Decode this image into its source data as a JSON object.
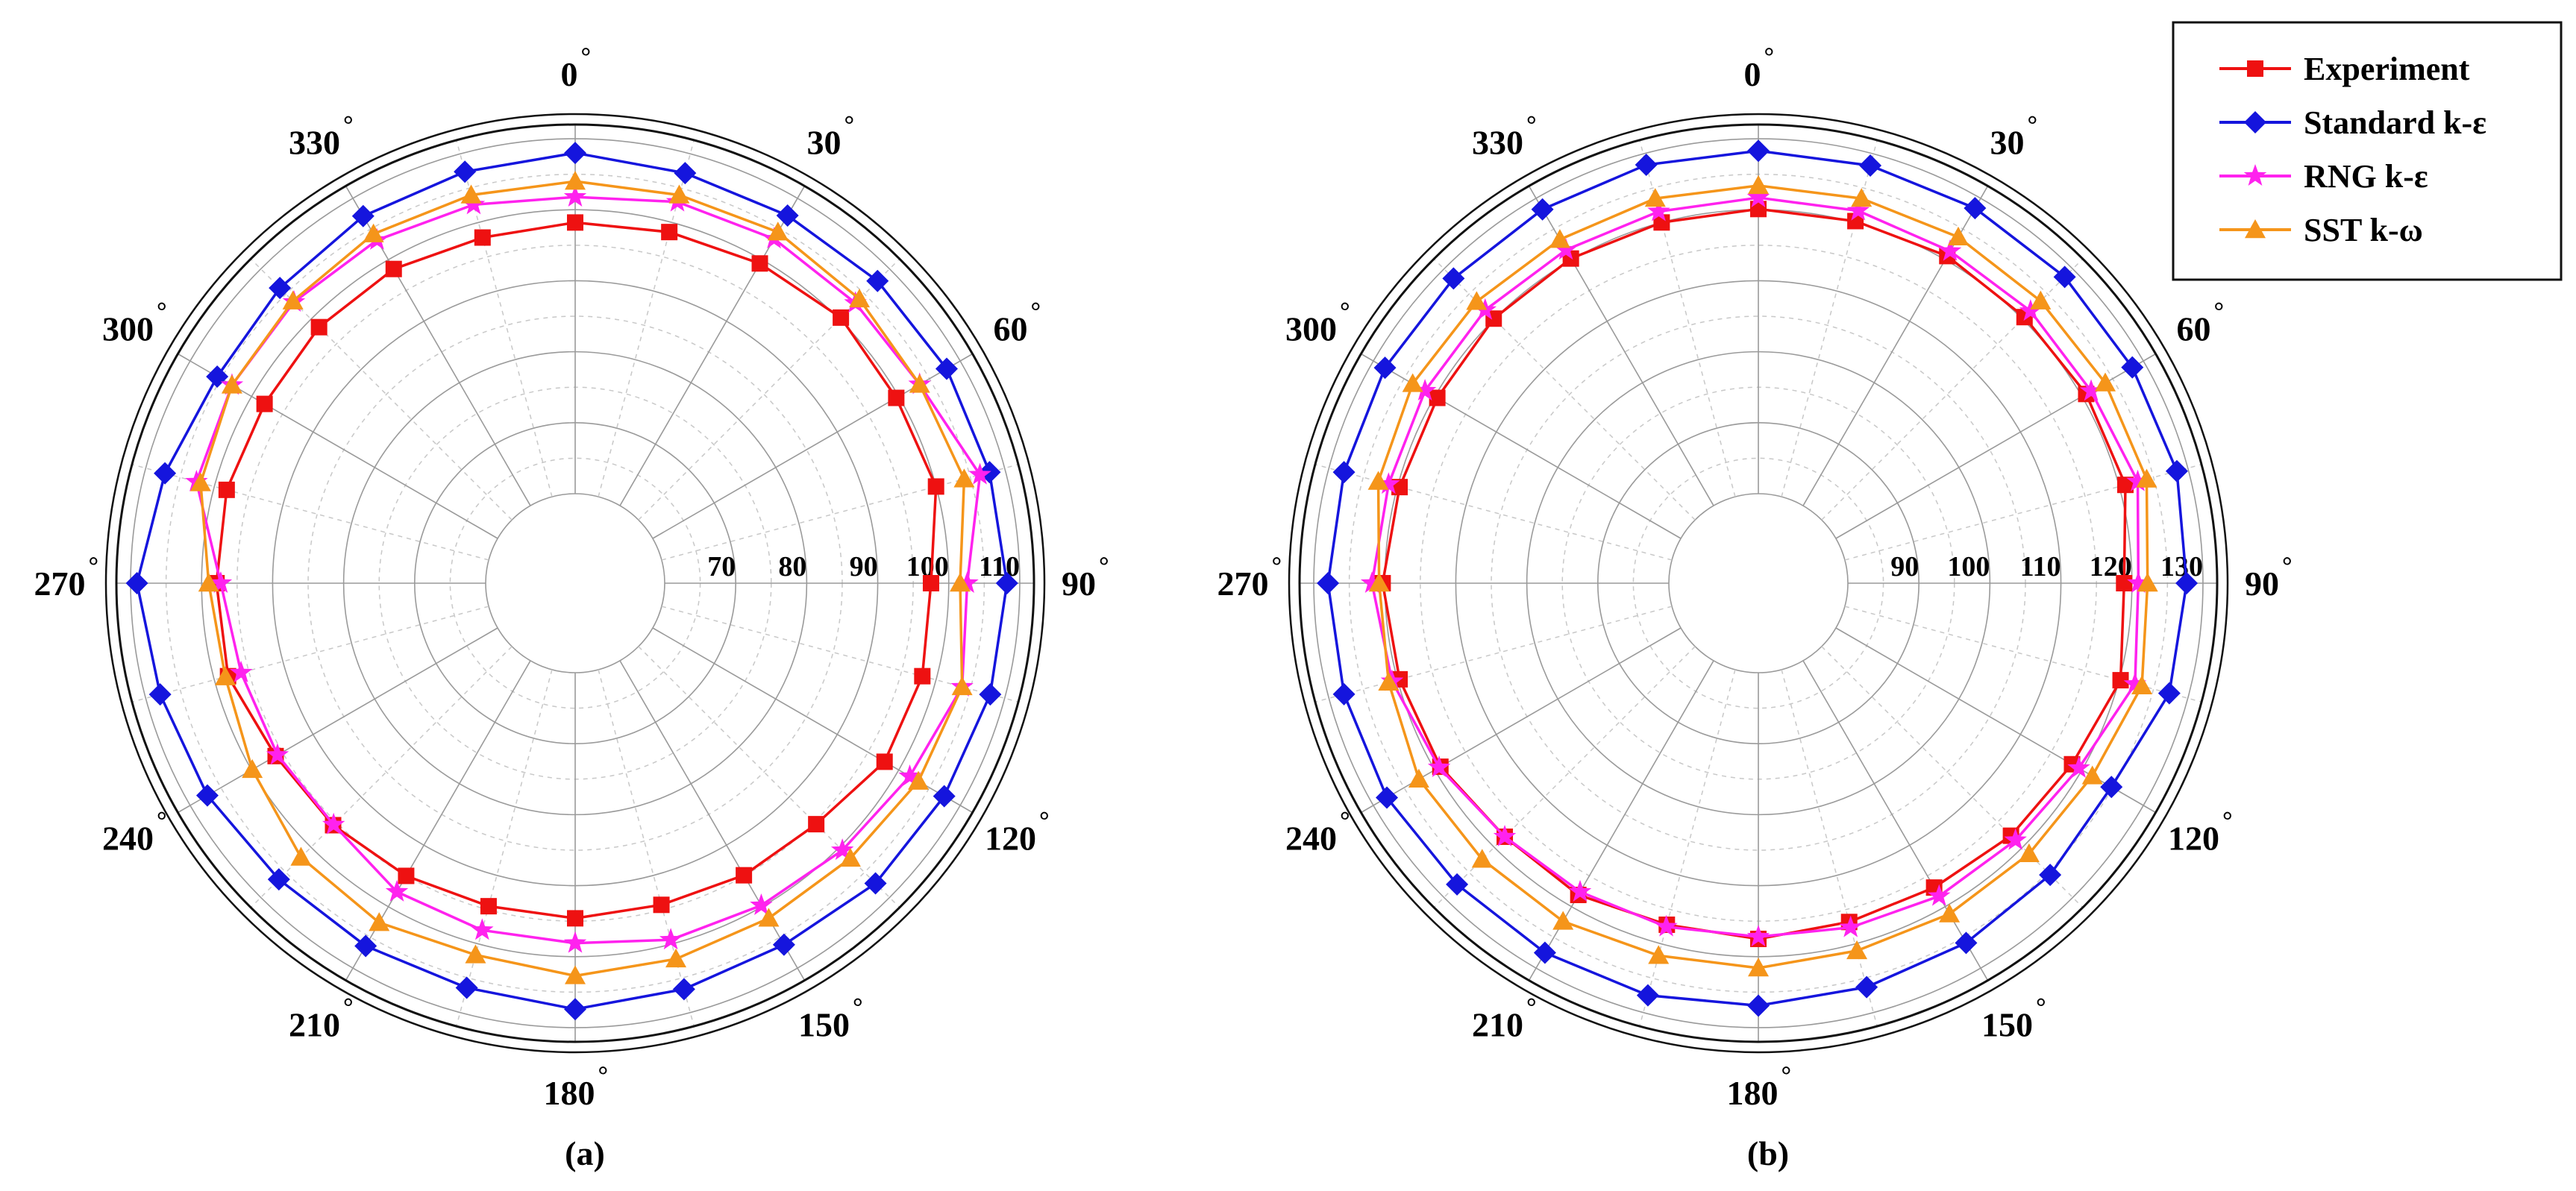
{
  "chart_data": [
    {
      "type": "polar",
      "panel_label": "(a)",
      "angles_deg": [
        0,
        15,
        30,
        45,
        60,
        75,
        90,
        105,
        120,
        135,
        150,
        165,
        180,
        195,
        210,
        225,
        240,
        255,
        270,
        285,
        300,
        315,
        330,
        345
      ],
      "angle_ticks": [
        "0",
        "30",
        "60",
        "90",
        "120",
        "150",
        "180",
        "210",
        "240",
        "270",
        "300",
        "330"
      ],
      "angle_tick_values": [
        0,
        30,
        60,
        90,
        120,
        150,
        180,
        210,
        240,
        270,
        300,
        330
      ],
      "radial_range": [
        60,
        112
      ],
      "radial_ticks": [
        "70",
        "80",
        "90",
        "100",
        "110"
      ],
      "radial_tick_values": [
        70,
        80,
        90,
        100,
        110
      ],
      "series": [
        {
          "name": "Experiment",
          "marker": "square",
          "color": "#ee1111",
          "values": [
            98.2,
            98.6,
            99.4,
            100.3,
            99.6,
            100,
            97.5,
            98,
            97.7,
            95.4,
            94.9,
            94.3,
            94.6,
            94.5,
            95,
            95.6,
            96.1,
            98,
            97.9,
            98.2,
            97.9,
            98.4,
            98.5,
            97.8
          ]
        },
        {
          "name": "Standard k-ε",
          "marker": "diamond",
          "color": "#1515dd",
          "values": [
            108,
            107.2,
            107.2,
            107.6,
            107.8,
            107.8,
            108.2,
            107.9,
            107.4,
            107.2,
            106.2,
            106.6,
            107.4,
            106.4,
            106.4,
            106.4,
            107.2,
            107.9,
            109.1,
            107.2,
            105.6,
            106.2,
            107.1,
            107.4
          ]
        },
        {
          "name": "RNG k-ε",
          "marker": "star",
          "color": "#ff22ee",
          "values": [
            101.8,
            103,
            103.4,
            103.2,
            103.4,
            106.4,
            102.6,
            103.8,
            101.8,
            100.6,
            99.8,
            99.4,
            98.1,
            98,
            97.6,
            95.5,
            95.8,
            96.1,
            97.3,
            102.6,
            103.2,
            103.4,
            103.2,
            102.6
          ]
        },
        {
          "name": "SST k-ω",
          "marker": "triangle",
          "color": "#f5951a",
          "values": [
            104,
            104,
            104.5,
            104,
            103.4,
            104.1,
            101.6,
            103.8,
            103.2,
            102.2,
            101.9,
            102.2,
            102.7,
            101.6,
            102.6,
            102,
            99.9,
            98.4,
            99,
            102,
            103.2,
            103.6,
            104.2,
            104
          ]
        }
      ]
    },
    {
      "type": "polar",
      "panel_label": "(b)",
      "angles_deg": [
        0,
        15,
        30,
        45,
        60,
        75,
        90,
        105,
        120,
        135,
        150,
        165,
        180,
        195,
        210,
        225,
        240,
        255,
        270,
        285,
        300,
        315,
        330,
        345
      ],
      "angle_ticks": [
        "0",
        "30",
        "60",
        "90",
        "120",
        "150",
        "180",
        "210",
        "240",
        "270",
        "300",
        "330"
      ],
      "angle_tick_values": [
        0,
        30,
        60,
        90,
        120,
        150,
        180,
        210,
        240,
        270,
        300,
        330
      ],
      "radial_range": [
        80,
        132
      ],
      "radial_ticks": [
        "90",
        "100",
        "110",
        "120",
        "130"
      ],
      "radial_tick_values": [
        90,
        100,
        110,
        120,
        130
      ],
      "series": [
        {
          "name": "Experiment",
          "marker": "square",
          "color": "#ee1111",
          "values": [
            120.1,
            120.2,
            120.6,
            120.4,
            120.7,
            120.9,
            118.9,
            120.2,
            118.4,
            117.7,
            116.9,
            116.8,
            117.5,
            117.2,
            118.1,
            117.9,
            119.1,
            119.7,
            120.3,
            119.7,
            119.6,
            120.1,
            120.2,
            120
          ]
        },
        {
          "name": "Standard k-ε",
          "marker": "diamond",
          "color": "#1515dd",
          "values": [
            128.3,
            128.3,
            128.4,
            128.4,
            128.2,
            128.4,
            127.7,
            127.3,
            124.8,
            125.5,
            125.9,
            126.3,
            126.9,
            127.5,
            127.5,
            127.4,
            127.8,
            127.8,
            128,
            127.8,
            128.1,
            128.1,
            128.2,
            128.4
          ]
        },
        {
          "name": "RNG k-ε",
          "marker": "star",
          "color": "#ff22ee",
          "values": [
            121.7,
            121.7,
            121.4,
            121.6,
            121.5,
            122.7,
            120.9,
            122.3,
            119.5,
            118.6,
            118.3,
            117.6,
            117.2,
            117.5,
            117.6,
            117.9,
            119.3,
            120.8,
            121.8,
            121.3,
            121.6,
            121.8,
            121.6,
            121.6
          ]
        },
        {
          "name": "SST k-ω",
          "marker": "triangle",
          "color": "#f5951a",
          "values": [
            123.4,
            123.5,
            123.7,
            123.6,
            123.8,
            124,
            122.2,
            123.3,
            121.7,
            121.3,
            121.2,
            121,
            121.6,
            121.7,
            122.4,
            122.4,
            122.6,
            121.3,
            120.8,
            122.8,
            123.6,
            123.5,
            123.3,
            123.5
          ]
        }
      ]
    }
  ],
  "legend": {
    "entries": [
      {
        "label": "Experiment",
        "series": 0
      },
      {
        "label": "Standard k-ε",
        "series": 1
      },
      {
        "label": "RNG k-ε",
        "series": 2
      },
      {
        "label": "SST k-ω",
        "series": 3
      }
    ],
    "placement": "top-right"
  },
  "degree_symbol": "°"
}
